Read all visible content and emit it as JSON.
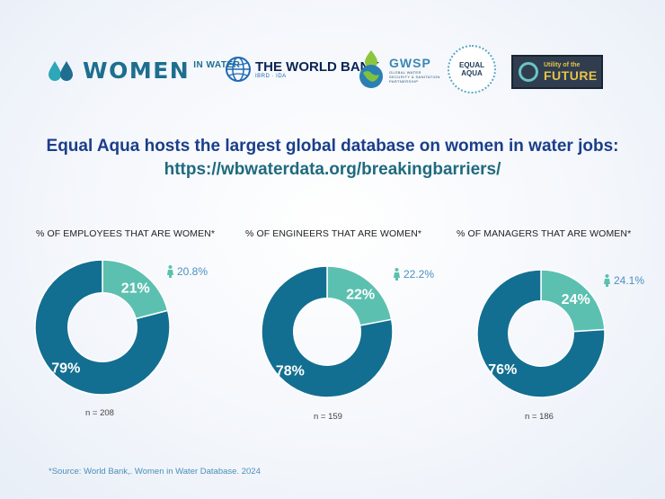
{
  "logos": {
    "women_in_water": {
      "main": "WOMEN",
      "sub": "IN WATER"
    },
    "world_bank": {
      "name": "THE WORLD BANK",
      "sub": "IBRD · IDA"
    },
    "gwsp": {
      "name": "GWSP",
      "sub": "GLOBAL WATER SECURITY & SANITATION PARTNERSHIP"
    },
    "equal_aqua": {
      "line1": "EQUAL",
      "line2": "AQUA"
    },
    "utility_future": {
      "small": "Utility of the",
      "big": "FUTURE"
    }
  },
  "headline": {
    "line1": "Equal Aqua hosts the largest global database on women in water jobs:",
    "line2": "https://wbwaterdata.org/breakingbarriers/"
  },
  "colors": {
    "women": "#5cc0b0",
    "men": "#136f91",
    "callout": "#4a90c0"
  },
  "chart_data": [
    {
      "type": "pie",
      "title": "% OF EMPLOYEES THAT ARE WOMEN*",
      "categories": [
        "women",
        "men"
      ],
      "values": [
        21,
        79
      ],
      "slice_labels": [
        "21%",
        "79%"
      ],
      "callout": "20.8%",
      "n": "n = 208"
    },
    {
      "type": "pie",
      "title": "% OF ENGINEERS THAT ARE WOMEN*",
      "categories": [
        "women",
        "men"
      ],
      "values": [
        22,
        78
      ],
      "slice_labels": [
        "22%",
        "78%"
      ],
      "callout": "22.2%",
      "n": "n = 159"
    },
    {
      "type": "pie",
      "title": "% OF MANAGERS THAT ARE WOMEN*",
      "categories": [
        "women",
        "men"
      ],
      "values": [
        24,
        76
      ],
      "slice_labels": [
        "24%",
        "76%"
      ],
      "callout": "24.1%",
      "n": "n = 186"
    }
  ],
  "source": "*Source: World Bank,. Women in Water Database. 2024"
}
